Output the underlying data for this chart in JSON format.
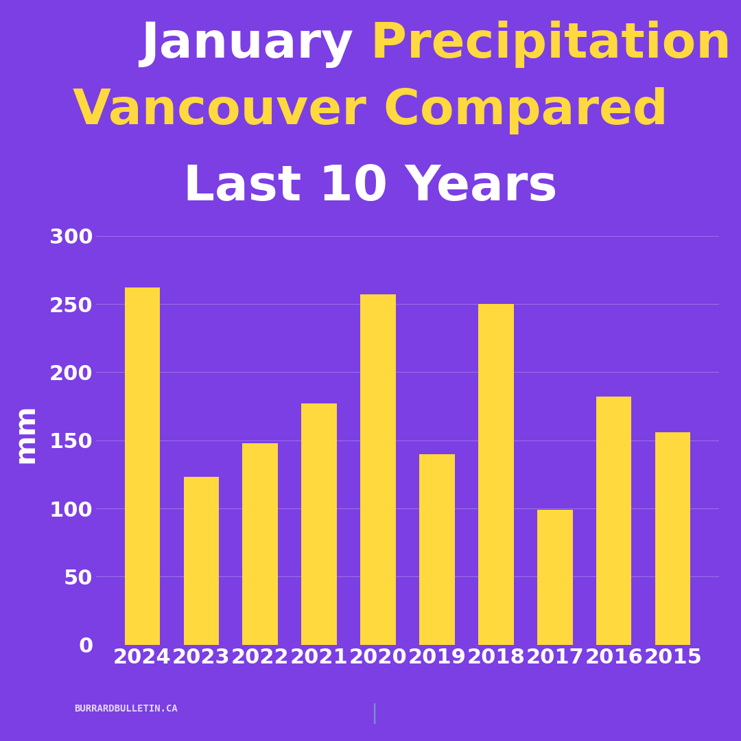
{
  "categories": [
    "2024",
    "2023",
    "2022",
    "2021",
    "2020",
    "2019",
    "2018",
    "2017",
    "2016",
    "2015"
  ],
  "values": [
    262,
    123,
    148,
    177,
    257,
    140,
    250,
    99,
    182,
    156
  ],
  "bar_color": "#FFD93D",
  "background_color": "#7B3FE4",
  "text_color_white": "#FFFFFF",
  "text_color_yellow": "#FFD93D",
  "ylabel": "mm",
  "yticks": [
    0,
    50,
    100,
    150,
    200,
    250,
    300
  ],
  "ylim": [
    0,
    310
  ],
  "watermark": "BURRARDBULLETIN.CA",
  "title_fontsize": 52,
  "axis_fontsize": 22,
  "ylabel_fontsize": 30,
  "grid_color": "#9B6FE8",
  "divider_color": "#7FAACC"
}
